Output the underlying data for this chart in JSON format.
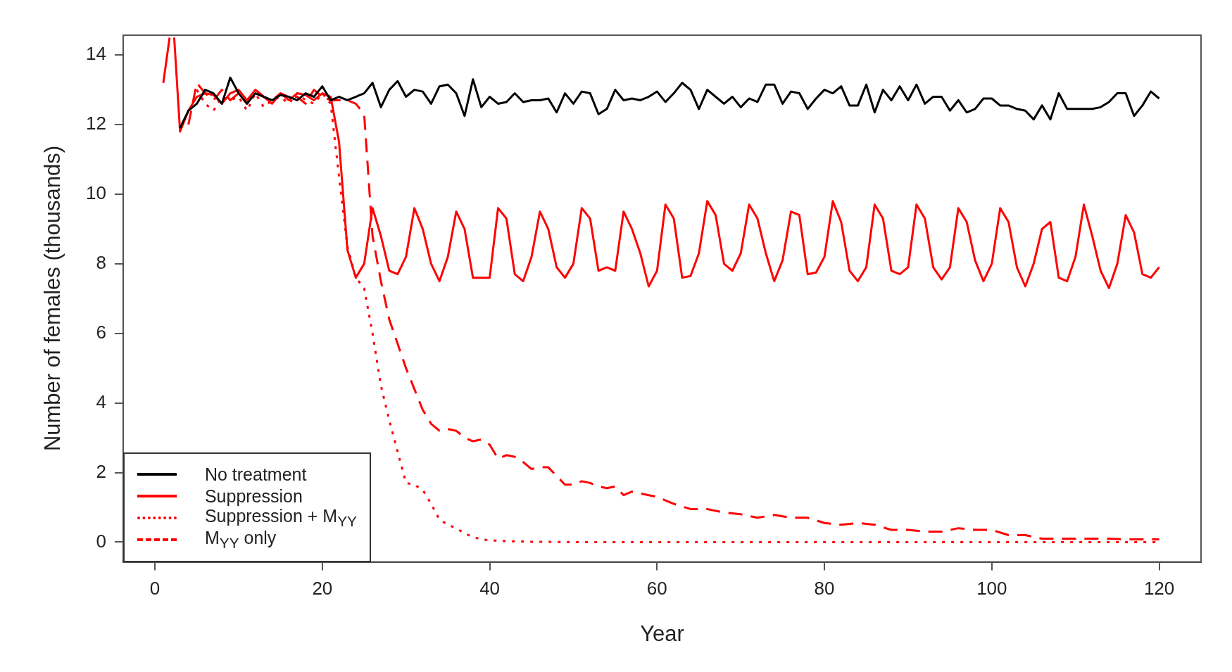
{
  "chart_data": {
    "type": "line",
    "xlabel": "Year",
    "ylabel": "Number of females (thousands)",
    "xlim": [
      -3.8,
      125
    ],
    "ylim": [
      -0.57,
      14.57
    ],
    "xticks": [
      0,
      20,
      40,
      60,
      80,
      100,
      120
    ],
    "yticks": [
      0,
      2,
      4,
      6,
      8,
      10,
      12,
      14
    ],
    "grid": false,
    "legend": "bottom left",
    "marker": "none",
    "series": [
      {
        "name": "No treatment",
        "color": "#000000",
        "line_style": "solid",
        "x": [
          3,
          4,
          5,
          6,
          7,
          8,
          9,
          10,
          11,
          12,
          13,
          14,
          15,
          16,
          17,
          18,
          19,
          20,
          21,
          22,
          23,
          24,
          25,
          26,
          27,
          28,
          29,
          30,
          31,
          32,
          33,
          34,
          35,
          36,
          37,
          38,
          39,
          40,
          41,
          42,
          43,
          44,
          45,
          46,
          47,
          48,
          49,
          50,
          51,
          52,
          53,
          54,
          55,
          56,
          57,
          58,
          59,
          60,
          61,
          62,
          63,
          64,
          65,
          66,
          67,
          68,
          69,
          70,
          71,
          72,
          73,
          74,
          75,
          76,
          77,
          78,
          79,
          80,
          81,
          82,
          83,
          84,
          85,
          86,
          87,
          88,
          89,
          90,
          91,
          92,
          93,
          94,
          95,
          96,
          97,
          98,
          99,
          100,
          101,
          102,
          103,
          104,
          105,
          106,
          107,
          108,
          109,
          110,
          111,
          112,
          113,
          114,
          115,
          116,
          117,
          118,
          119,
          120
        ],
        "values": [
          11.9,
          12.4,
          12.6,
          13.0,
          12.9,
          12.6,
          13.35,
          12.9,
          12.6,
          12.9,
          12.8,
          12.7,
          12.85,
          12.8,
          12.7,
          12.9,
          12.8,
          13.1,
          12.7,
          12.8,
          12.7,
          12.8,
          12.9,
          13.2,
          12.5,
          13.0,
          13.25,
          12.8,
          13.0,
          12.95,
          12.6,
          13.1,
          13.15,
          12.9,
          12.25,
          13.3,
          12.5,
          12.8,
          12.6,
          12.65,
          12.9,
          12.65,
          12.7,
          12.7,
          12.75,
          12.35,
          12.9,
          12.6,
          12.95,
          12.9,
          12.3,
          12.45,
          13.0,
          12.7,
          12.75,
          12.7,
          12.8,
          12.95,
          12.65,
          12.9,
          13.2,
          13.0,
          12.45,
          13.0,
          12.8,
          12.6,
          12.8,
          12.5,
          12.75,
          12.65,
          13.15,
          13.15,
          12.6,
          12.95,
          12.9,
          12.45,
          12.75,
          13.0,
          12.9,
          13.1,
          12.55,
          12.55,
          13.15,
          12.35,
          13.0,
          12.7,
          13.1,
          12.7,
          13.15,
          12.6,
          12.8,
          12.8,
          12.4,
          12.7,
          12.35,
          12.45,
          12.75,
          12.75,
          12.55,
          12.55,
          12.45,
          12.4,
          12.15,
          12.55,
          12.15,
          12.9,
          12.45,
          12.45,
          12.45,
          12.45,
          12.5,
          12.65,
          12.9,
          12.9,
          12.25,
          12.55,
          12.95,
          12.75
        ]
      },
      {
        "name": "Suppression",
        "color": "#ff0000",
        "line_style": "solid",
        "x": [
          1,
          1.75,
          2,
          2.3,
          3,
          4,
          5,
          6,
          7,
          8,
          9,
          10,
          11,
          12,
          13,
          14,
          15,
          16,
          17,
          18,
          19,
          20,
          21,
          22,
          23,
          24,
          25,
          26,
          27,
          28,
          29,
          30,
          31,
          32,
          33,
          34,
          35,
          36,
          37,
          38,
          39,
          40,
          41,
          42,
          43,
          44,
          45,
          46,
          47,
          48,
          49,
          50,
          51,
          52,
          53,
          54,
          55,
          56,
          57,
          58,
          59,
          60,
          61,
          62,
          63,
          64,
          65,
          66,
          67,
          68,
          69,
          70,
          71,
          72,
          73,
          74,
          75,
          76,
          77,
          78,
          79,
          80,
          81,
          82,
          83,
          84,
          85,
          86,
          87,
          88,
          89,
          90,
          91,
          92,
          93,
          94,
          95,
          96,
          97,
          98,
          99,
          100,
          101,
          102,
          103,
          104,
          105,
          106,
          107,
          108,
          109,
          110,
          111,
          112,
          113,
          114,
          115,
          116,
          117,
          118,
          119,
          120
        ],
        "values": [
          13.2,
          14.5,
          null,
          14.5,
          11.8,
          12.4,
          12.8,
          12.9,
          12.85,
          12.6,
          12.9,
          13.0,
          12.7,
          13.0,
          12.8,
          12.6,
          12.9,
          12.7,
          12.9,
          12.85,
          12.7,
          12.9,
          12.8,
          11.5,
          8.4,
          7.6,
          8.0,
          9.6,
          8.8,
          7.8,
          7.7,
          8.2,
          9.6,
          9.0,
          8.0,
          7.5,
          8.2,
          9.5,
          9.0,
          7.6,
          7.6,
          7.6,
          9.6,
          9.3,
          7.7,
          7.5,
          8.2,
          9.5,
          9.0,
          7.9,
          7.6,
          8.0,
          9.6,
          9.3,
          7.8,
          7.9,
          7.8,
          9.5,
          9.0,
          8.3,
          7.35,
          7.8,
          9.7,
          9.3,
          7.6,
          7.65,
          8.3,
          9.8,
          9.4,
          8.0,
          7.8,
          8.3,
          9.7,
          9.3,
          8.3,
          7.5,
          8.1,
          9.5,
          9.4,
          7.7,
          7.75,
          8.2,
          9.8,
          9.2,
          7.8,
          7.5,
          7.9,
          9.7,
          9.3,
          7.8,
          7.7,
          7.9,
          9.7,
          9.3,
          7.9,
          7.55,
          7.9,
          9.6,
          9.2,
          8.1,
          7.5,
          8.0,
          9.6,
          9.2,
          7.9,
          7.35,
          8.0,
          9.0,
          9.2,
          7.6,
          7.5,
          8.2,
          9.7,
          8.8,
          7.8,
          7.3,
          8.0,
          9.4,
          8.9,
          7.7,
          7.6,
          7.9
        ]
      },
      {
        "name": "Suppression + M$_{YY}$",
        "color": "#ff0000",
        "line_style": "dotted",
        "x": [
          5,
          6,
          7,
          8,
          9,
          10,
          11,
          12,
          13,
          14,
          15,
          16,
          17,
          18,
          19,
          20,
          21,
          22,
          23,
          24,
          25,
          26,
          27,
          28,
          29,
          30,
          31,
          32,
          33,
          34,
          35,
          36,
          37,
          38,
          39,
          40,
          42,
          45,
          50,
          60,
          70,
          80,
          90,
          100,
          110,
          120
        ],
        "values": [
          13.0,
          12.6,
          12.4,
          12.8,
          12.7,
          12.8,
          12.4,
          12.9,
          12.5,
          12.7,
          12.8,
          12.6,
          12.9,
          12.7,
          12.6,
          12.9,
          12.6,
          10.5,
          8.5,
          7.6,
          7.3,
          6.0,
          4.5,
          3.5,
          2.6,
          1.7,
          1.65,
          1.5,
          1.1,
          0.65,
          0.5,
          0.4,
          0.25,
          0.15,
          0.08,
          0.05,
          0.03,
          0.01,
          0,
          0,
          0,
          0,
          0,
          0,
          0,
          0
        ]
      },
      {
        "name": "M$_{YY}$ only",
        "color": "#ff0000",
        "line_style": "dashed",
        "x": [
          4,
          5,
          6,
          7,
          8,
          9,
          10,
          11,
          12,
          13,
          14,
          15,
          16,
          17,
          18,
          19,
          20,
          21,
          22,
          23,
          24,
          25,
          26,
          27,
          28,
          29,
          30,
          31,
          32,
          33,
          34,
          35,
          36,
          37,
          38,
          39,
          40,
          41,
          42,
          43,
          44,
          45,
          46,
          47,
          48,
          49,
          50,
          51,
          52,
          53,
          54,
          55,
          56,
          57,
          58,
          59,
          60,
          62,
          64,
          66,
          68,
          70,
          72,
          74,
          76,
          78,
          80,
          82,
          84,
          86,
          88,
          90,
          92,
          94,
          96,
          98,
          100,
          102,
          104,
          106,
          108,
          110,
          112,
          114,
          116,
          118,
          120
        ],
        "values": [
          12.0,
          13.2,
          12.9,
          12.7,
          13.0,
          12.7,
          12.9,
          12.6,
          13.0,
          12.8,
          12.7,
          12.9,
          12.8,
          12.8,
          12.6,
          13.0,
          12.8,
          12.7,
          12.7,
          12.7,
          12.6,
          12.3,
          8.8,
          7.5,
          6.4,
          5.7,
          5.0,
          4.4,
          3.8,
          3.4,
          3.2,
          3.25,
          3.2,
          3.0,
          2.9,
          2.95,
          2.8,
          2.4,
          2.5,
          2.45,
          2.3,
          2.1,
          2.15,
          2.15,
          1.9,
          1.65,
          1.65,
          1.75,
          1.7,
          1.6,
          1.55,
          1.6,
          1.35,
          1.45,
          1.4,
          1.35,
          1.3,
          1.1,
          0.95,
          0.95,
          0.85,
          0.8,
          0.7,
          0.78,
          0.7,
          0.7,
          0.55,
          0.5,
          0.55,
          0.5,
          0.35,
          0.35,
          0.3,
          0.3,
          0.4,
          0.35,
          0.35,
          0.2,
          0.2,
          0.1,
          0.1,
          0.1,
          0.1,
          0.1,
          0.08,
          0.08,
          0.08
        ]
      }
    ]
  }
}
